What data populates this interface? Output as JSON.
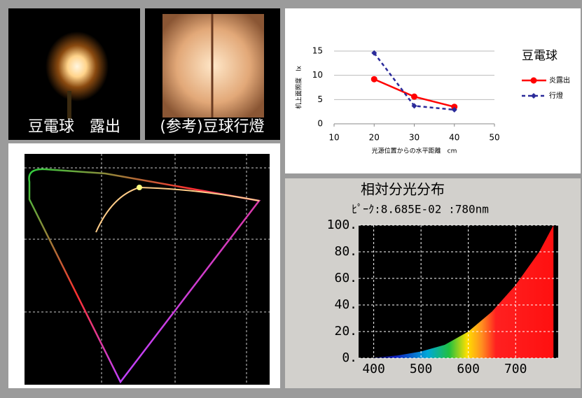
{
  "photos": [
    {
      "caption": "豆電球　露出"
    },
    {
      "caption": "(参考)豆球行燈"
    }
  ],
  "chart_data": [
    {
      "type": "line",
      "legend_title": "豆電球",
      "x_label": "光源位置からの水平距離　cm",
      "y_label": "机上面照度　lx",
      "x": [
        20,
        30,
        40
      ],
      "series": [
        {
          "name": "炎露出",
          "color": "#ff0000",
          "linestyle": "solid",
          "marker": "circle",
          "values": [
            9.2,
            5.6,
            3.5
          ]
        },
        {
          "name": "行燈",
          "color": "#2b2b9a",
          "linestyle": "dashed",
          "marker": "diamond",
          "values": [
            14.6,
            3.7,
            2.9
          ]
        }
      ],
      "xlim": [
        10,
        50
      ],
      "xticks": [
        10,
        20,
        30,
        40,
        50
      ],
      "ylim": [
        0,
        15
      ],
      "yticks": [
        0,
        5,
        10,
        15
      ],
      "grid": true
    },
    {
      "type": "area",
      "title": "相対分光分布",
      "subtitle": "ﾋﾟｰｸ:8.685E-02 :780nm",
      "x": [
        400,
        450,
        500,
        550,
        600,
        650,
        700,
        750,
        780
      ],
      "values": [
        0.5,
        2,
        5,
        10,
        20,
        35,
        55,
        80,
        100
      ],
      "xlim": [
        368,
        790
      ],
      "xticks": [
        400,
        500,
        600,
        700
      ],
      "ylim": [
        0,
        100
      ],
      "yticks": [
        {
          "value": 0,
          "label": "0."
        },
        {
          "value": 20,
          "label": "20."
        },
        {
          "value": 40,
          "label": "40."
        },
        {
          "value": 60,
          "label": "60."
        },
        {
          "value": 80,
          "label": "80."
        },
        {
          "value": 100,
          "label": "100."
        }
      ],
      "grid": true
    }
  ]
}
